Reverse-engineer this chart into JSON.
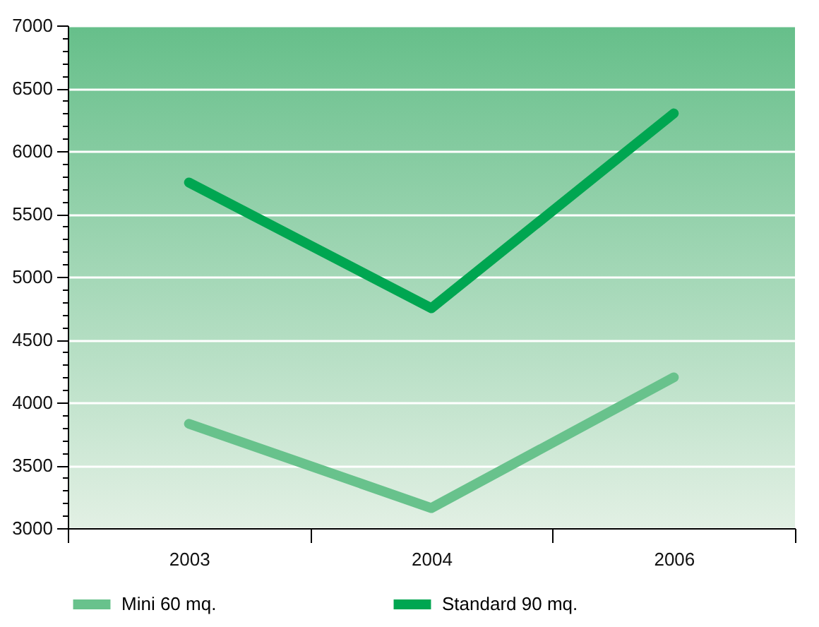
{
  "chart_data": {
    "type": "line",
    "categories": [
      "2003",
      "2004",
      "2006"
    ],
    "series": [
      {
        "name": "Mini 60 mq.",
        "color": "#68c28c",
        "values": [
          3830,
          3160,
          4200
        ]
      },
      {
        "name": "Standard 90 mq.",
        "color": "#00a651",
        "values": [
          5750,
          4750,
          6300
        ]
      }
    ],
    "ylim": [
      3000,
      7000
    ],
    "yticks": [
      3000,
      {
        "value": 3100,
        "label": null
      },
      {
        "value": 3200,
        "label": null
      },
      {
        "value": 3300,
        "label": null
      },
      {
        "value": 3400,
        "label": null
      },
      3500,
      {
        "value": 3600,
        "label": null
      },
      {
        "value": 3700,
        "label": null
      },
      {
        "value": 3800,
        "label": null
      },
      {
        "value": 3900,
        "label": null
      },
      4000,
      {
        "value": 4100,
        "label": null
      },
      {
        "value": 4200,
        "label": null
      },
      {
        "value": 4300,
        "label": null
      },
      {
        "value": 4400,
        "label": null
      },
      4500,
      {
        "value": 4600,
        "label": null
      },
      {
        "value": 4700,
        "label": null
      },
      {
        "value": 4800,
        "label": null
      },
      {
        "value": 4900,
        "label": null
      },
      5000,
      {
        "value": 5100,
        "label": null
      },
      {
        "value": 5200,
        "label": null
      },
      {
        "value": 5300,
        "label": null
      },
      {
        "value": 5400,
        "label": null
      },
      5500,
      {
        "value": 5600,
        "label": null
      },
      {
        "value": 5700,
        "label": null
      },
      {
        "value": 5800,
        "label": null
      },
      {
        "value": 5900,
        "label": null
      },
      6000,
      {
        "value": 6100,
        "label": null
      },
      {
        "value": 6200,
        "label": null
      },
      {
        "value": 6300,
        "label": null
      },
      {
        "value": 6400,
        "label": null
      },
      6500,
      {
        "value": 6600,
        "label": null
      },
      {
        "value": 6700,
        "label": null
      },
      {
        "value": 6800,
        "label": null
      },
      {
        "value": 6900,
        "label": null
      },
      7000
    ],
    "grid": "y",
    "legend": "bottom",
    "marker": "none",
    "line_style": "solid"
  }
}
